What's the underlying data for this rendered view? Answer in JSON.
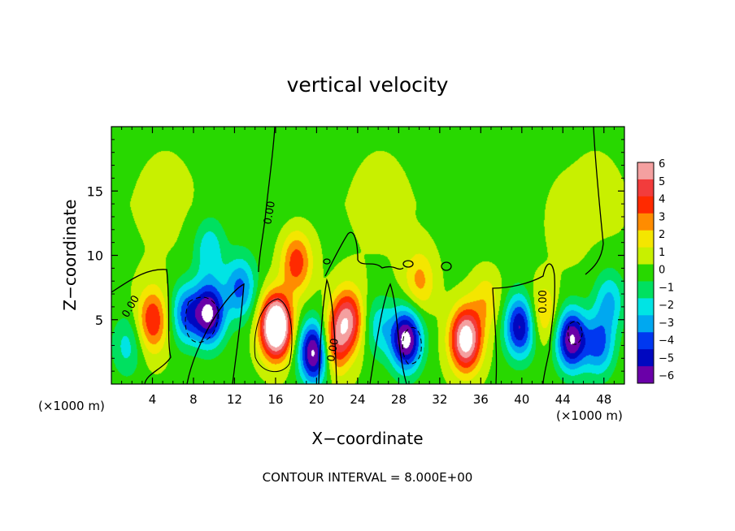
{
  "chart_data": {
    "type": "heatmap",
    "title": "vertical velocity",
    "xlabel": "X−coordinate",
    "ylabel": "Z−coordinate",
    "x_unit_left": "(×1000 m)",
    "x_unit_right": "(×1000 m)",
    "xlim": [
      0,
      50
    ],
    "ylim": [
      0,
      20
    ],
    "x_ticks": [
      "4",
      "8",
      "12",
      "16",
      "20",
      "24",
      "28",
      "32",
      "36",
      "40",
      "44",
      "48"
    ],
    "x_tick_values": [
      4,
      8,
      12,
      16,
      20,
      24,
      28,
      32,
      36,
      40,
      44,
      48
    ],
    "y_ticks": [
      "5",
      "10",
      "15"
    ],
    "y_tick_values": [
      5,
      10,
      15
    ],
    "colorbar": {
      "levels": [
        "6",
        "5",
        "4",
        "3",
        "2",
        "1",
        "0",
        "−1",
        "−2",
        "−3",
        "−4",
        "−5",
        "−6"
      ],
      "colors": [
        "#f4a0a0",
        "#f23c3c",
        "#ff2a00",
        "#ff8c00",
        "#f4e600",
        "#c8f000",
        "#28d800",
        "#00e060",
        "#00e4e4",
        "#00a8f0",
        "#0038f0",
        "#0008c0",
        "#6a00a8"
      ]
    },
    "contour_label": "0.00",
    "contour_interval_text": "CONTOUR INTERVAL = 8.000E+00",
    "features": [
      {
        "x": 1.5,
        "z": 3.0,
        "w": -2.2
      },
      {
        "x": 4.0,
        "z": 5.0,
        "w": 4.2
      },
      {
        "x": 7.2,
        "z": 5.5,
        "w": -4.2
      },
      {
        "x": 9.5,
        "z": 5.5,
        "w": -7.0
      },
      {
        "x": 9.5,
        "z": 10.5,
        "w": -2.6
      },
      {
        "x": 12.5,
        "z": 7.5,
        "w": -4.0
      },
      {
        "x": 16.0,
        "z": 4.5,
        "w": 10.0
      },
      {
        "x": 18.0,
        "z": 9.5,
        "w": 4.0
      },
      {
        "x": 19.8,
        "z": 2.5,
        "w": -8.0
      },
      {
        "x": 21.5,
        "z": 3.0,
        "w": 4.5
      },
      {
        "x": 23.0,
        "z": 5.0,
        "w": 5.5
      },
      {
        "x": 26.0,
        "z": 4.5,
        "w": -2.5
      },
      {
        "x": 28.7,
        "z": 3.5,
        "w": -7.5
      },
      {
        "x": 30.0,
        "z": 8.0,
        "w": 2.5
      },
      {
        "x": 34.5,
        "z": 3.5,
        "w": 7.5
      },
      {
        "x": 36.5,
        "z": 6.5,
        "w": 2.0
      },
      {
        "x": 39.8,
        "z": 4.5,
        "w": -6.0
      },
      {
        "x": 42.0,
        "z": 5.5,
        "w": 2.5
      },
      {
        "x": 44.8,
        "z": 3.5,
        "w": -7.0
      },
      {
        "x": 48.5,
        "z": 6.5,
        "w": -3.0
      },
      {
        "x": 47.5,
        "z": 3.0,
        "w": -4.0
      },
      {
        "x": 44.0,
        "z": 12.5,
        "w": 0.8
      }
    ]
  }
}
